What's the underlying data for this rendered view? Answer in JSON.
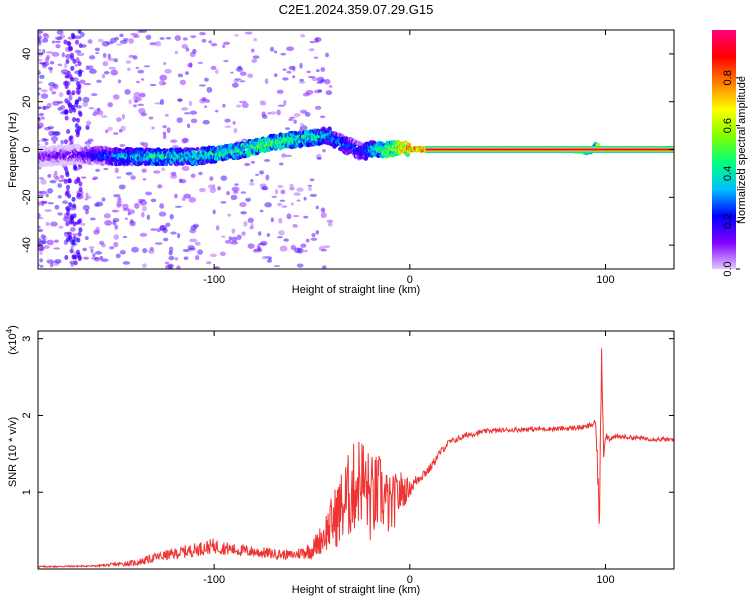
{
  "title": "C2E1.2024.359.07.29.G15",
  "chart_data": [
    {
      "type": "heatmap",
      "xlabel": "Height of straight line (km)",
      "ylabel": "Frequency (Hz)",
      "xlim": [
        -190,
        135
      ],
      "ylim": [
        -50,
        50
      ],
      "xticks": [
        -100,
        0,
        100
      ],
      "xtick_labels": [
        "-100",
        "0",
        "100"
      ],
      "yticks": [
        -40,
        -20,
        0,
        20,
        40
      ],
      "ytick_labels": [
        "-40",
        "-20",
        "0",
        "20",
        "40"
      ],
      "colorbar": {
        "label": "Normalized spectral amplitude",
        "range": [
          0,
          1
        ],
        "ticks": [
          0.0,
          0.2,
          0.4,
          0.6,
          0.8
        ],
        "tick_labels": [
          "0.0",
          "0.2",
          "0.4",
          "0.6",
          "0.8"
        ],
        "colormap": [
          "#e0c8ff",
          "#8000ff",
          "#0000ff",
          "#00c0ff",
          "#00ff80",
          "#80ff00",
          "#ffff00",
          "#ff8000",
          "#ff0000",
          "#ff0080"
        ]
      },
      "trend": {
        "x": [
          -190,
          -170,
          -150,
          -130,
          -110,
          -90,
          -70,
          -60,
          -50,
          -42,
          -36,
          -30,
          -25,
          -20,
          -15,
          -10,
          -5,
          0,
          10,
          20,
          40,
          60,
          80,
          92,
          95,
          98,
          100,
          120,
          135
        ],
        "y": [
          -3,
          -2,
          -3,
          -3,
          -3,
          -1,
          3,
          4,
          5,
          6,
          3,
          1,
          -1,
          0,
          0,
          0,
          1,
          0,
          0,
          0,
          0,
          0,
          0,
          -1,
          2,
          0,
          0,
          0,
          0
        ],
        "amplitude": [
          0.15,
          0.2,
          0.35,
          0.45,
          0.45,
          0.5,
          0.55,
          0.5,
          0.5,
          0.4,
          0.35,
          0.3,
          0.3,
          0.4,
          0.55,
          0.6,
          0.75,
          0.8,
          0.85,
          0.95,
          0.95,
          0.95,
          0.95,
          0.5,
          0.4,
          0.9,
          0.95,
          0.95,
          0.95
        ]
      }
    },
    {
      "type": "line",
      "xlabel": "Height of straight line (km)",
      "ylabel": "SNR (10 * v/v)",
      "scale_label": "(x10",
      "scale_exp": "4",
      "scale_close": ")",
      "xlim": [
        -190,
        135
      ],
      "ylim": [
        0,
        3.1
      ],
      "xticks": [
        -100,
        0,
        100
      ],
      "xtick_labels": [
        "-100",
        "0",
        "100"
      ],
      "yticks": [
        1,
        2,
        3
      ],
      "ytick_labels": [
        "1",
        "2",
        "3"
      ],
      "color": "#ee3333",
      "series": [
        {
          "x": [
            -190,
            -160,
            -140,
            -130,
            -110,
            -100,
            -90,
            -70,
            -60,
            -50,
            -45,
            -40,
            -35,
            -30,
            -25,
            -20,
            -15,
            -10,
            -5,
            0,
            5,
            10,
            15,
            20,
            30,
            40,
            60,
            80,
            90,
            95,
            97,
            98,
            99,
            100,
            102,
            105,
            110,
            120,
            135
          ],
          "y": [
            0.03,
            0.04,
            0.08,
            0.15,
            0.25,
            0.3,
            0.25,
            0.2,
            0.18,
            0.25,
            0.4,
            0.6,
            0.8,
            1.0,
            1.2,
            0.9,
            1.0,
            0.8,
            1.0,
            1.05,
            1.2,
            1.3,
            1.5,
            1.65,
            1.75,
            1.8,
            1.82,
            1.83,
            1.85,
            1.9,
            0.6,
            2.9,
            1.5,
            1.75,
            1.7,
            1.72,
            1.72,
            1.7,
            1.68
          ],
          "noise": [
            0.01,
            0.01,
            0.04,
            0.06,
            0.09,
            0.1,
            0.08,
            0.07,
            0.06,
            0.12,
            0.2,
            0.35,
            0.5,
            0.6,
            0.6,
            0.6,
            0.5,
            0.4,
            0.3,
            0.1,
            0.08,
            0.06,
            0.05,
            0.04,
            0.04,
            0.03,
            0.03,
            0.03,
            0.03,
            0.05,
            0.3,
            0.2,
            0.1,
            0.05,
            0.04,
            0.03,
            0.03,
            0.03,
            0.03
          ]
        }
      ]
    }
  ]
}
